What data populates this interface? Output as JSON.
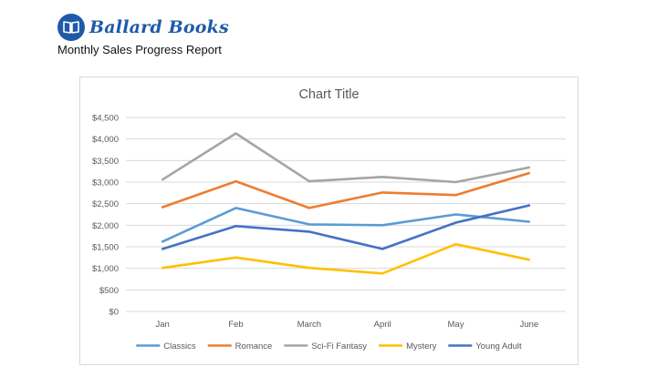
{
  "header": {
    "brand_name": "Ballard Books",
    "logo_icon": "book-icon",
    "subtitle": "Monthly Sales Progress Report"
  },
  "colors": {
    "brand": "#1f5aa8",
    "grid": "#d9d9d9",
    "axis_text": "#595959"
  },
  "chart_data": {
    "type": "line",
    "title": "Chart Title",
    "xlabel": "",
    "ylabel": "",
    "categories": [
      "Jan",
      "Feb",
      "March",
      "April",
      "May",
      "June"
    ],
    "y_ticks": [
      "$0",
      "$500",
      "$1,000",
      "$1,500",
      "$2,000",
      "$2,500",
      "$3,000",
      "$3,500",
      "$4,000",
      "$4,500"
    ],
    "ylim": [
      0,
      4500
    ],
    "grid": true,
    "legend_position": "bottom",
    "series": [
      {
        "name": "Classics",
        "color": "#5b9bd5",
        "values": [
          1620,
          2400,
          2020,
          2000,
          2250,
          2080
        ]
      },
      {
        "name": "Romance",
        "color": "#ed7d31",
        "values": [
          2420,
          3020,
          2400,
          2760,
          2700,
          3210
        ]
      },
      {
        "name": "Sci-Fi Fantasy",
        "color": "#a5a5a5",
        "values": [
          3060,
          4130,
          3020,
          3120,
          3000,
          3340
        ]
      },
      {
        "name": "Mystery",
        "color": "#ffc000",
        "values": [
          1010,
          1250,
          1010,
          880,
          1560,
          1200
        ]
      },
      {
        "name": "Young Adult",
        "color": "#4472c4",
        "values": [
          1450,
          1980,
          1850,
          1450,
          2060,
          2460
        ]
      }
    ]
  }
}
